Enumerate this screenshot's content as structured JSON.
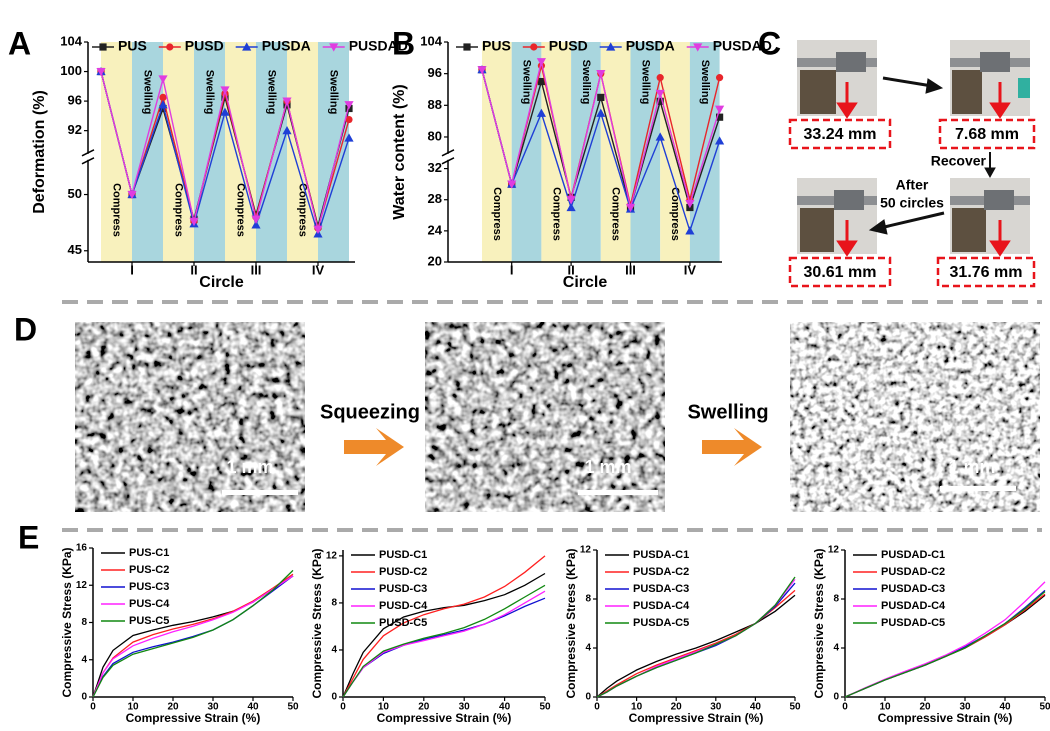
{
  "panel_labels": [
    "A",
    "B",
    "C",
    "D",
    "E"
  ],
  "photos": {
    "measurements": [
      "33.24 mm",
      "7.68 mm",
      "31.76 mm",
      "30.61 mm"
    ],
    "recover": "Recover",
    "after": [
      "After",
      "50 circles"
    ]
  },
  "sem": {
    "scale_bars": [
      "1 mm",
      "1 mm",
      "1 mm"
    ],
    "steps": [
      "Squeezing",
      "Swelling"
    ]
  },
  "chart_data": [
    {
      "type": "line",
      "ylabel": "Deformation (%)",
      "xlabel": "Circle",
      "categories": [
        null,
        "I",
        null,
        "II",
        null,
        "III",
        null,
        "IV",
        null
      ],
      "bands": [
        "Compress",
        "Swelling",
        "Compress",
        "Swelling",
        "Compress",
        "Swelling",
        "Compress",
        "Swelling"
      ],
      "band_colors": [
        "#f8f1bd",
        "#a9d6de"
      ],
      "ylim": [
        44,
        104
      ],
      "ybreak": [
        53,
        89
      ],
      "yticks": [
        45,
        50,
        92,
        96,
        100,
        104
      ],
      "legend": "top",
      "series": [
        {
          "name": "PUS",
          "color": "#222222",
          "marker": "square",
          "values": [
            100,
            50,
            95,
            47.8,
            96.5,
            48.2,
            95.5,
            47.2,
            95
          ]
        },
        {
          "name": "PUSD",
          "color": "#e8262b",
          "marker": "circle",
          "values": [
            100,
            50,
            96.5,
            47.6,
            97,
            48,
            96,
            47,
            93.5
          ]
        },
        {
          "name": "PUSDA",
          "color": "#1f3fd6",
          "marker": "triangle",
          "values": [
            100,
            50,
            95.5,
            47.4,
            94.5,
            47.3,
            92,
            46.5,
            91
          ]
        },
        {
          "name": "PUSDAD",
          "color": "#e03ce0",
          "marker": "triangle-down",
          "values": [
            100,
            50,
            99,
            47.6,
            97.5,
            47.8,
            96,
            46.9,
            95.5
          ]
        }
      ]
    },
    {
      "type": "line",
      "ylabel": "Water content (%)",
      "xlabel": "Circle",
      "categories": [
        null,
        "I",
        null,
        "II",
        null,
        "III",
        null,
        "IV",
        null
      ],
      "bands": [
        "Compress",
        "Swelling",
        "Compress",
        "Swelling",
        "Compress",
        "Swelling",
        "Compress",
        "Swelling"
      ],
      "band_colors": [
        "#f8f1bd",
        "#a9d6de"
      ],
      "ylim": [
        20,
        104
      ],
      "ybreak": [
        33,
        76
      ],
      "yticks": [
        20,
        24,
        28,
        32,
        80,
        88,
        96,
        104
      ],
      "legend": "top",
      "series": [
        {
          "name": "PUS",
          "color": "#222222",
          "marker": "square",
          "values": [
            97,
            30,
            94,
            28.3,
            90,
            27,
            89,
            27,
            85
          ]
        },
        {
          "name": "PUSD",
          "color": "#e8262b",
          "marker": "circle",
          "values": [
            97,
            30,
            98,
            28.2,
            96,
            27.3,
            95,
            28,
            95
          ]
        },
        {
          "name": "PUSDA",
          "color": "#1f3fd6",
          "marker": "triangle",
          "values": [
            97,
            30,
            86,
            27,
            86,
            26.8,
            80,
            24,
            79
          ]
        },
        {
          "name": "PUSDAD",
          "color": "#e03ce0",
          "marker": "triangle-down",
          "values": [
            97,
            30,
            99,
            28,
            96,
            27,
            91,
            27.5,
            87
          ]
        }
      ]
    },
    {
      "type": "curve",
      "ylabel": "Compressive Stress (KPa)",
      "xlabel": "Compressive Strain (%)",
      "x": [
        0,
        2.5,
        5,
        10,
        15,
        20,
        25,
        30,
        35,
        40,
        45,
        50
      ],
      "xlim": [
        0,
        50
      ],
      "xticks": [
        0,
        10,
        20,
        30,
        40,
        50
      ],
      "ylim": [
        0,
        16
      ],
      "yticks": [
        0,
        4,
        8,
        12,
        16
      ],
      "legend": "upper left",
      "series": [
        {
          "name": "PUS-C1",
          "color": "#000000",
          "values": [
            0,
            3.2,
            5,
            6.6,
            7.2,
            7.7,
            8.1,
            8.6,
            9.2,
            10.2,
            11.6,
            13
          ]
        },
        {
          "name": "PUS-C2",
          "color": "#ff2020",
          "values": [
            0,
            2.6,
            4.2,
            5.9,
            6.7,
            7.3,
            7.8,
            8.4,
            9.2,
            10.3,
            11.7,
            13.2
          ]
        },
        {
          "name": "PUS-C3",
          "color": "#1010d0",
          "values": [
            0,
            2.2,
            3.6,
            4.8,
            5.4,
            5.9,
            6.5,
            7.2,
            8.3,
            9.8,
            11.4,
            13
          ]
        },
        {
          "name": "PUS-C4",
          "color": "#ff20ff",
          "values": [
            0,
            2.6,
            4.1,
            5.5,
            6.3,
            7,
            7.6,
            8.3,
            9.1,
            10.2,
            11.6,
            13
          ]
        },
        {
          "name": "PUS-C5",
          "color": "#118811",
          "values": [
            0,
            2.1,
            3.4,
            4.6,
            5.2,
            5.8,
            6.4,
            7.2,
            8.3,
            9.8,
            11.5,
            13.6
          ]
        }
      ]
    },
    {
      "type": "curve",
      "ylabel": "Compressive Stress (KPa)",
      "xlabel": "Compressive Strain (%)",
      "x": [
        0,
        2.5,
        5,
        10,
        15,
        20,
        25,
        30,
        35,
        40,
        45,
        50
      ],
      "xlim": [
        0,
        50
      ],
      "xticks": [
        0,
        10,
        20,
        30,
        40,
        50
      ],
      "ylim": [
        0,
        12.5
      ],
      "yticks": [
        0,
        4,
        8,
        12
      ],
      "legend": "upper left",
      "series": [
        {
          "name": "PUSD-C1",
          "color": "#000000",
          "values": [
            0,
            2,
            3.8,
            5.8,
            6.8,
            7.3,
            7.6,
            7.8,
            8.2,
            8.7,
            9.5,
            10.5
          ]
        },
        {
          "name": "PUSD-C2",
          "color": "#ff2020",
          "values": [
            0,
            1.6,
            3.2,
            5.2,
            6.3,
            7,
            7.5,
            7.9,
            8.5,
            9.4,
            10.6,
            12
          ]
        },
        {
          "name": "PUSD-C3",
          "color": "#1010d0",
          "values": [
            0,
            1.3,
            2.5,
            3.7,
            4.4,
            4.9,
            5.3,
            5.7,
            6.2,
            6.9,
            7.7,
            8.4
          ]
        },
        {
          "name": "PUSD-C4",
          "color": "#ff20ff",
          "values": [
            0,
            1.3,
            2.5,
            3.8,
            4.4,
            4.8,
            5.2,
            5.6,
            6.2,
            7,
            8,
            9
          ]
        },
        {
          "name": "PUSD-C5",
          "color": "#118811",
          "values": [
            0,
            1.3,
            2.6,
            3.9,
            4.5,
            5,
            5.4,
            5.9,
            6.6,
            7.5,
            8.5,
            9.5
          ]
        }
      ]
    },
    {
      "type": "curve",
      "ylabel": "Compressive Stress (KPa)",
      "xlabel": "Compressive Strain (%)",
      "x": [
        0,
        2.5,
        5,
        10,
        15,
        20,
        25,
        30,
        35,
        40,
        45,
        50
      ],
      "xlim": [
        0,
        50
      ],
      "xticks": [
        0,
        10,
        20,
        30,
        40,
        50
      ],
      "ylim": [
        0,
        12
      ],
      "yticks": [
        0,
        4,
        8,
        12
      ],
      "legend": "upper left",
      "series": [
        {
          "name": "PUSDA-C1",
          "color": "#000000",
          "values": [
            0,
            0.7,
            1.3,
            2.2,
            2.9,
            3.5,
            4,
            4.6,
            5.3,
            6,
            7,
            8.3
          ]
        },
        {
          "name": "PUSDA-C2",
          "color": "#ff2020",
          "values": [
            0,
            0.5,
            1,
            1.9,
            2.6,
            3.2,
            3.8,
            4.4,
            5.1,
            6,
            7.3,
            8.7
          ]
        },
        {
          "name": "PUSDA-C3",
          "color": "#1010d0",
          "values": [
            0,
            0.4,
            0.9,
            1.7,
            2.4,
            3,
            3.6,
            4.2,
            5,
            6,
            7.4,
            9.3
          ]
        },
        {
          "name": "PUSDA-C4",
          "color": "#ff20ff",
          "values": [
            0,
            0.4,
            0.9,
            1.7,
            2.5,
            3.1,
            3.7,
            4.3,
            5,
            6,
            7.5,
            9.6
          ]
        },
        {
          "name": "PUSDA-C5",
          "color": "#118811",
          "values": [
            0,
            0.4,
            0.9,
            1.7,
            2.4,
            3,
            3.6,
            4.3,
            5,
            6,
            7.5,
            9.8
          ]
        }
      ]
    },
    {
      "type": "curve",
      "ylabel": "Compressive Stress (KPa)",
      "xlabel": "Compressive Strain (%)",
      "x": [
        0,
        2.5,
        5,
        10,
        15,
        20,
        25,
        30,
        35,
        40,
        45,
        50
      ],
      "xlim": [
        0,
        50
      ],
      "xticks": [
        0,
        10,
        20,
        30,
        40,
        50
      ],
      "ylim": [
        0,
        12
      ],
      "yticks": [
        0,
        4,
        8,
        12
      ],
      "legend": "upper left",
      "series": [
        {
          "name": "PUSDAD-C1",
          "color": "#000000",
          "values": [
            0,
            0.35,
            0.7,
            1.4,
            2,
            2.6,
            3.3,
            4,
            4.9,
            5.9,
            7,
            8.3
          ]
        },
        {
          "name": "PUSDAD-C2",
          "color": "#ff2020",
          "values": [
            0,
            0.35,
            0.7,
            1.4,
            2,
            2.6,
            3.3,
            4,
            4.9,
            5.9,
            7.1,
            8.4
          ]
        },
        {
          "name": "PUSDAD-C3",
          "color": "#1010d0",
          "values": [
            0,
            0.35,
            0.7,
            1.4,
            2,
            2.6,
            3.3,
            4.1,
            5,
            6,
            7.3,
            8.7
          ]
        },
        {
          "name": "PUSDAD-C4",
          "color": "#ff20ff",
          "values": [
            0,
            0.37,
            0.75,
            1.45,
            2.1,
            2.7,
            3.4,
            4.2,
            5.2,
            6.3,
            7.8,
            9.4
          ]
        },
        {
          "name": "PUSDAD-C5",
          "color": "#118811",
          "values": [
            0,
            0.35,
            0.7,
            1.4,
            2,
            2.6,
            3.3,
            4,
            5,
            6,
            7.2,
            8.6
          ]
        }
      ]
    }
  ]
}
